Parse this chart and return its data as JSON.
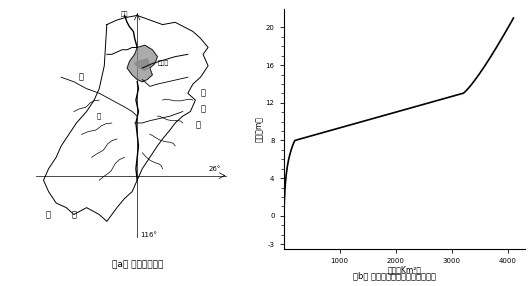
{
  "title_a": "（a） 鄱阳湖水系图",
  "title_b": "（b） 鄱阳湖水位与面积变化的关系",
  "ylabel_b": "海拔（m）",
  "xlabel_b": "面积（Km²）",
  "yticks_labeled": [
    -3,
    0,
    4,
    8,
    12,
    16,
    20
  ],
  "yticks_minor": [
    -2,
    -1,
    1,
    2,
    3,
    5,
    6,
    7,
    9,
    10,
    11,
    13,
    14,
    15,
    17,
    18,
    19
  ],
  "xticks_b": [
    1000,
    2000,
    3000,
    4000
  ],
  "xlim_b": [
    0,
    4300
  ],
  "ylim_b": [
    -3.5,
    22
  ],
  "curve_color": "#000000",
  "bg_color": "#ffffff",
  "map_labels": {
    "lake": "鄱阳湖",
    "river_north": "长江",
    "west": "赣",
    "east_top": "武",
    "east_mid": "夷",
    "east_bot": "山",
    "south_left": "南",
    "south_right": "岭",
    "river_label": "江",
    "lat": "26°",
    "lon": "116°"
  }
}
